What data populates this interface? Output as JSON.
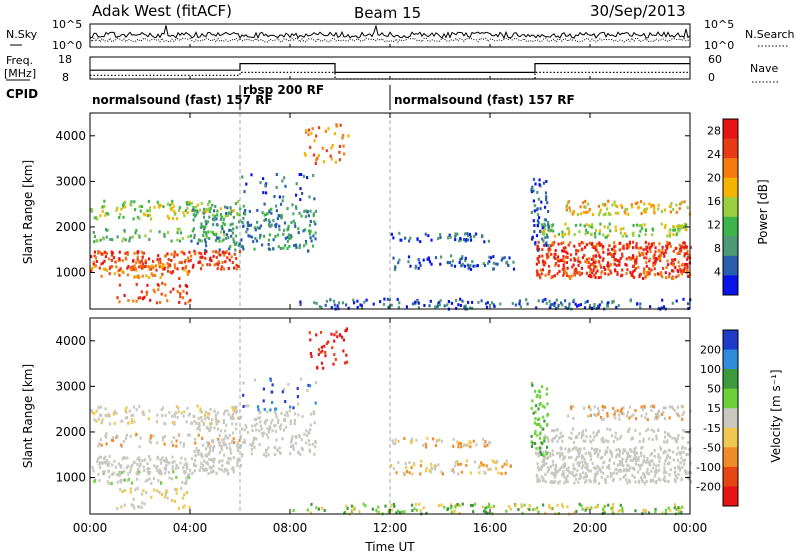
{
  "header": {
    "station": "Adak West (fitACF)",
    "beam": "Beam 15",
    "date": "30/Sep/2013"
  },
  "noise_panel": {
    "left_label": "N.Sky",
    "right_label": "N.Search",
    "left_ticks": [
      "10^5",
      "10^0"
    ],
    "right_ticks": [
      "10^5",
      "10^0"
    ]
  },
  "freq_panel": {
    "left_label": "Freq.",
    "left_unit": "[MHz]",
    "right_label": "Nave",
    "left_ticks": [
      "18",
      "8"
    ],
    "right_ticks": [
      "60",
      "0"
    ]
  },
  "cpid_panel": {
    "label": "CPID",
    "segments": [
      {
        "name": "normalsound (fast) 157 RF",
        "start_hour": 0,
        "end_hour": 6
      },
      {
        "name": "rbsp 200 RF",
        "start_hour": 6,
        "end_hour": 12
      },
      {
        "name": "normalsound (fast) 157 RF",
        "start_hour": 12,
        "end_hour": 24
      }
    ]
  },
  "x_axis": {
    "label": "Time UT",
    "ticks": [
      "00:00",
      "04:00",
      "08:00",
      "12:00",
      "16:00",
      "20:00",
      "00:00"
    ],
    "tick_hours": [
      0,
      4,
      8,
      12,
      16,
      20,
      24
    ]
  },
  "power_panel": {
    "ylabel": "Slant Range [km]",
    "yticks": [
      "1000",
      "2000",
      "3000",
      "4000"
    ],
    "colorbar_label": "Power [dB]",
    "colorbar_ticks": [
      "4",
      "8",
      "12",
      "16",
      "20",
      "24",
      "28"
    ],
    "colors": [
      "#0a14e6",
      "#2a5fb0",
      "#4c9a78",
      "#3cb44a",
      "#9ad040",
      "#f5b400",
      "#f57a10",
      "#e83a14",
      "#e61414"
    ]
  },
  "velocity_panel": {
    "ylabel": "Slant Range [km]",
    "yticks": [
      "1000",
      "2000",
      "3000",
      "4000"
    ],
    "colorbar_label": "Velocity [m s⁻¹]",
    "colorbar_ticks": [
      "200",
      "100",
      "50",
      "15",
      "-15",
      "-50",
      "-100",
      "-200"
    ],
    "colors": [
      "#1e3cc8",
      "#2d8cdc",
      "#3c9a3c",
      "#6cd23c",
      "#c8c8c0",
      "#f0c850",
      "#f08c28",
      "#e64614",
      "#e61414"
    ]
  },
  "chart_data": [
    {
      "type": "line",
      "name": "noise",
      "x_range_hours": [
        0,
        24
      ],
      "series_levels": {
        "sky_mean": 2.0,
        "search_mean": 1.0
      }
    },
    {
      "type": "line",
      "name": "frequency-nave",
      "x": [
        0,
        6,
        6,
        9.8,
        9.8,
        17.8,
        17.8,
        24
      ],
      "freq_mhz": [
        12,
        12,
        15,
        15,
        11,
        11,
        15,
        15
      ],
      "nave": [
        10,
        10,
        18,
        18,
        0,
        0,
        18,
        18
      ],
      "xlim": [
        0,
        24
      ],
      "ylim_freq": [
        8,
        18
      ],
      "ylim_nave": [
        0,
        60
      ]
    },
    {
      "type": "heatmap",
      "name": "power",
      "xlim": [
        0,
        24
      ],
      "ylim": [
        200,
        4500
      ],
      "zlim": [
        0,
        30
      ]
    },
    {
      "type": "heatmap",
      "name": "velocity",
      "xlim": [
        0,
        24
      ],
      "ylim": [
        200,
        4500
      ],
      "zlim": [
        -250,
        250
      ]
    }
  ]
}
